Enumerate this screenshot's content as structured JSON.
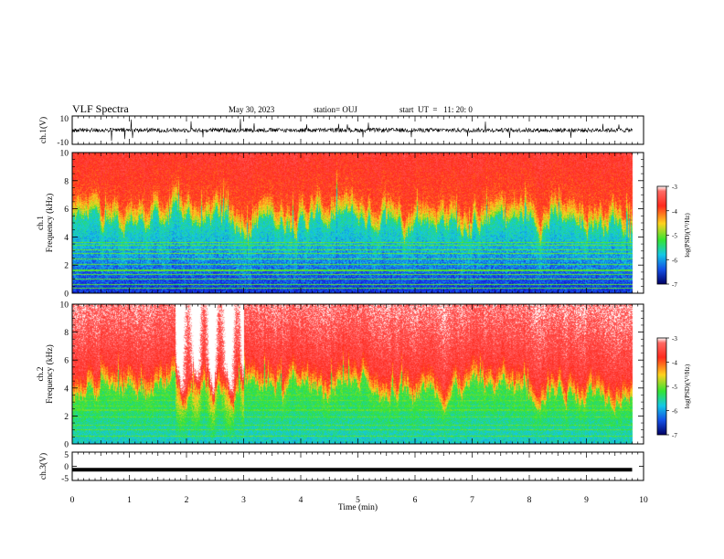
{
  "header": {
    "title": "VLF Spectra",
    "date": "May 30, 2023",
    "station": "station= OUJ",
    "start": "start  UT  =   11: 20: 0"
  },
  "colors": {
    "colormap": [
      "#ffffff",
      "#ff2a1e",
      "#ffd21e",
      "#33e433",
      "#14c8e6",
      "#1450e6",
      "#000064"
    ],
    "trace": "#000000",
    "frame": "#000000",
    "background": "#ffffff"
  },
  "chart_data": [
    {
      "type": "line",
      "id": "ch1_waveform",
      "ylabel": "ch.1(V)",
      "ylim": [
        -10,
        10
      ],
      "y_ticklabels": [
        "10",
        "-10"
      ],
      "description_series": "broadband waveform trace, baseline near 0 V with spikes",
      "x_range_min": [
        0,
        10
      ],
      "series": [
        {
          "baseline": 0,
          "amplitude": 1.5,
          "spike_amplitude": 8
        }
      ]
    },
    {
      "type": "heatmap",
      "id": "ch1_spectrogram",
      "ylabel": "ch.1\nFrequency (kHz)",
      "ylim": [
        0,
        10
      ],
      "y_ticklabels": [
        "0",
        "2",
        "4",
        "6",
        "8",
        "10"
      ],
      "x_range_min": [
        0,
        9.8
      ],
      "colorbar": {
        "label": "log(PSD)(V²/Hz)",
        "range": [
          -7,
          -3
        ],
        "ticklabels": [
          "-3",
          "-4",
          "-5",
          "-6",
          "-7"
        ]
      },
      "field_log_psd": {
        "top_band": -3.9,
        "mid_band": -4.9,
        "low_band": -6.4,
        "transition_khz": 5.2
      }
    },
    {
      "type": "heatmap",
      "id": "ch2_spectrogram",
      "ylabel": "ch.2\nFrequency (kHz)",
      "ylim": [
        0,
        10
      ],
      "y_ticklabels": [
        "0",
        "2",
        "4",
        "6",
        "8",
        "10"
      ],
      "x_range_min": [
        0,
        9.8
      ],
      "colorbar": {
        "label": "log(PSD)(V²/Hz)",
        "range": [
          -7,
          -3
        ],
        "ticklabels": [
          "-3",
          "-4",
          "-5",
          "-6",
          "-7"
        ]
      },
      "field_log_psd": {
        "top_band": -3.6,
        "mid_band": -4.6,
        "low_band": -5.7,
        "transition_khz": 4.0
      },
      "strong_interval_min": [
        1.8,
        3.0
      ]
    },
    {
      "type": "line",
      "id": "ch3_waveform",
      "ylabel": "ch.3(V)",
      "ylim": [
        -5,
        5
      ],
      "y_ticklabels": [
        "5",
        "0",
        "-5"
      ],
      "x_range_min": [
        0,
        9.8
      ],
      "series": [
        {
          "constant": -1.2
        }
      ]
    }
  ],
  "xaxis": {
    "label": "Time (min)",
    "range": [
      0,
      10
    ],
    "ticklabels": [
      "0",
      "1",
      "2",
      "3",
      "4",
      "5",
      "6",
      "7",
      "8",
      "9",
      "10"
    ]
  }
}
